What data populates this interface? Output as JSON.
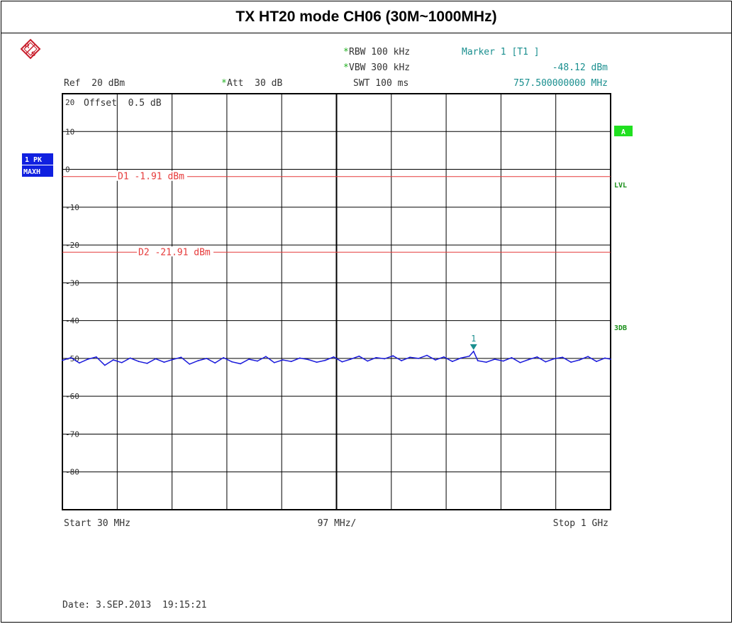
{
  "title": "TX HT20 mode CH06 (30M~1000MHz)",
  "header": {
    "ref": "Ref  20 dBm",
    "att_star": "*",
    "att": "Att  30 dB",
    "rbw_star": "*",
    "rbw": "RBW 100 kHz",
    "vbw_star": "*",
    "vbw": "VBW 300 kHz",
    "swt": "SWT 100 ms",
    "marker_title": "Marker 1 [T1 ]",
    "marker_level": "-48.12 dBm",
    "marker_freq": "757.500000000 MHz"
  },
  "left_badges": {
    "trace_line1": "1 PK",
    "trace_line2": "MAXH"
  },
  "right_badges": {
    "a": "A",
    "lvl": "LVL",
    "three_db": "3DB"
  },
  "footer": {
    "start": "Start 30 MHz",
    "span_per_div": "97 MHz/",
    "stop": "Stop 1 GHz",
    "date": "Date: 3.SEP.2013  19:15:21"
  },
  "colors": {
    "trace": "#1a1adb",
    "display_line": "#e63a3a",
    "marker": "#1a8f8f",
    "badge_blue": "#1020e0",
    "badge_green": "#20e020",
    "grid": "#000000"
  },
  "chart_data": {
    "type": "line",
    "title": "TX HT20 mode CH06 (30M~1000MHz)",
    "xlabel": "",
    "ylabel": "",
    "xlim": [
      30,
      1000
    ],
    "ylim": [
      -90,
      20
    ],
    "x_unit": "MHz",
    "y_unit": "dBm",
    "offset_label": "Offset  0.5 dB",
    "y_ticks": [
      20,
      10,
      0,
      -10,
      -20,
      -30,
      -40,
      -50,
      -60,
      -70,
      -80
    ],
    "y_tick_labels": [
      "20",
      "10",
      "0",
      "-10",
      "-20",
      "-30",
      "-40",
      "-50",
      "-60",
      "-70",
      "-80"
    ],
    "grid": true,
    "display_lines": [
      {
        "name": "D1",
        "value": -1.91,
        "label": "D1 -1.91 dBm"
      },
      {
        "name": "D2",
        "value": -21.91,
        "label": "D2 -21.91 dBm"
      }
    ],
    "marker": {
      "id": "1",
      "x": 757.5,
      "y": -48.12
    },
    "series": [
      {
        "x": [
          30,
          45,
          60,
          75,
          90,
          105,
          120,
          135,
          150,
          165,
          180,
          195,
          210,
          225,
          240,
          255,
          270,
          285,
          300,
          315,
          330,
          345,
          360,
          375,
          390,
          405,
          420,
          435,
          450,
          465,
          480,
          495,
          510,
          525,
          540,
          555,
          570,
          585,
          600,
          615,
          630,
          645,
          660,
          675,
          690,
          705,
          720,
          735,
          750,
          757.5,
          765,
          780,
          795,
          810,
          825,
          840,
          855,
          870,
          885,
          900,
          915,
          930,
          945,
          960,
          975,
          990,
          1000
        ],
        "y": [
          -50.5,
          -49.8,
          -51.2,
          -50.2,
          -49.6,
          -51.8,
          -50.4,
          -51.1,
          -49.9,
          -50.8,
          -51.3,
          -50.1,
          -51.0,
          -50.3,
          -49.7,
          -51.5,
          -50.6,
          -50.0,
          -51.2,
          -49.8,
          -50.9,
          -51.4,
          -50.2,
          -50.7,
          -49.5,
          -51.1,
          -50.4,
          -50.8,
          -49.9,
          -50.3,
          -51.0,
          -50.5,
          -49.6,
          -50.9,
          -50.2,
          -49.4,
          -50.7,
          -49.8,
          -50.1,
          -49.3,
          -50.6,
          -49.7,
          -50.0,
          -49.2,
          -50.4,
          -49.6,
          -50.8,
          -49.9,
          -49.4,
          -48.12,
          -50.6,
          -51.0,
          -50.2,
          -50.7,
          -49.8,
          -51.1,
          -50.3,
          -49.6,
          -50.9,
          -50.1,
          -49.7,
          -51.0,
          -50.4,
          -49.5,
          -50.8,
          -49.9,
          -50.2
        ]
      }
    ]
  }
}
